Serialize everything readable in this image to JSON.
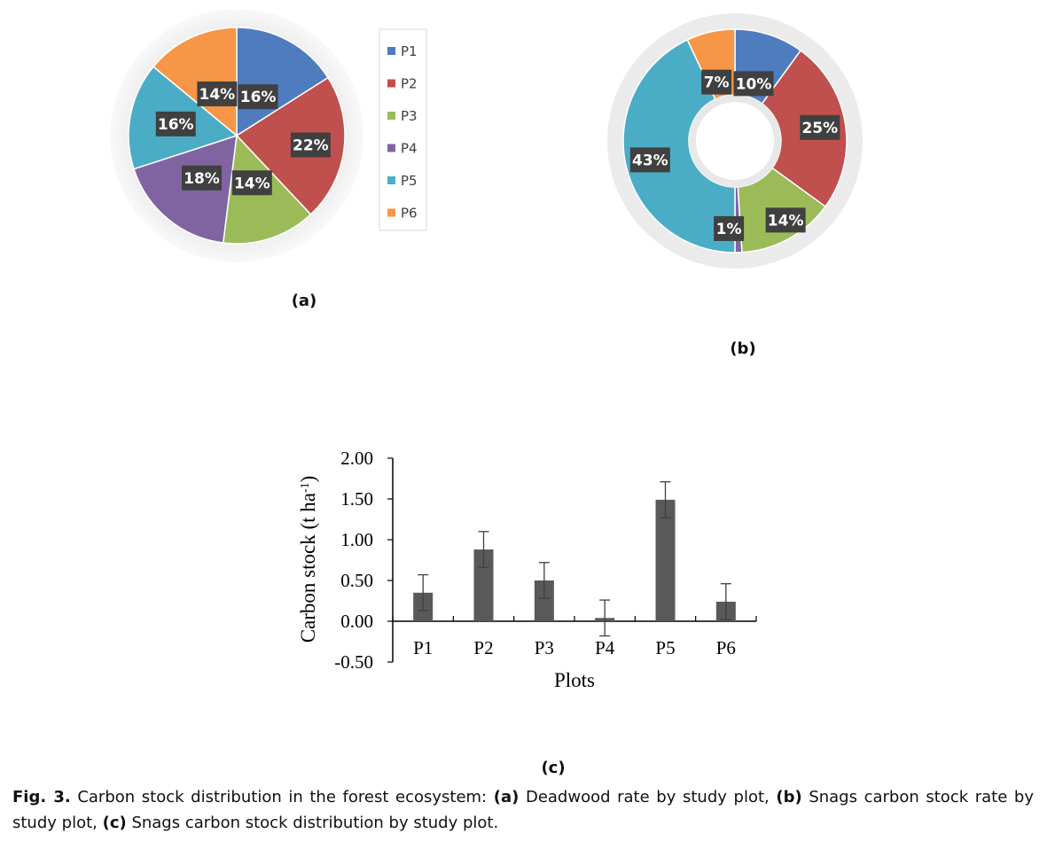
{
  "chart_data": [
    {
      "type": "pie",
      "panel_label": "(a)",
      "categories": [
        "P1",
        "P2",
        "P3",
        "P4",
        "P5",
        "P6"
      ],
      "values": [
        16,
        22,
        14,
        18,
        16,
        14
      ],
      "data_labels": [
        "16%",
        "22%",
        "14%",
        "18%",
        "16%",
        "14%"
      ],
      "legend": [
        "P1",
        "P2",
        "P3",
        "P4",
        "P5",
        "P6"
      ],
      "legend_position": "right",
      "colors": [
        "#4f7cbe",
        "#c0504d",
        "#9bbb59",
        "#8064a2",
        "#4bacc6",
        "#f79646"
      ]
    },
    {
      "type": "pie",
      "variant": "donut",
      "panel_label": "(b)",
      "categories": [
        "P1",
        "P2",
        "P3",
        "P4",
        "P5",
        "P6"
      ],
      "values": [
        10,
        25,
        14,
        1,
        43,
        7
      ],
      "data_labels": [
        "10%",
        "25%",
        "14%",
        "1%",
        "43%",
        "7%"
      ],
      "colors": [
        "#4f7cbe",
        "#c0504d",
        "#9bbb59",
        "#8064a2",
        "#4bacc6",
        "#f79646"
      ]
    },
    {
      "type": "bar",
      "panel_label": "(c)",
      "categories": [
        "P1",
        "P2",
        "P3",
        "P4",
        "P5",
        "P6"
      ],
      "values": [
        0.35,
        0.88,
        0.5,
        0.04,
        1.49,
        0.24
      ],
      "error": [
        0.22,
        0.22,
        0.22,
        0.22,
        0.22,
        0.22
      ],
      "xlabel": "Plots",
      "ylabel": "Carbon stock (t ha",
      "ylabel_sup": "-1",
      "ylabel_end": ")",
      "ylim": [
        -0.5,
        2.0
      ],
      "yticks": [
        "-0.50",
        "0.00",
        "0.50",
        "1.00",
        "1.50",
        "2.00"
      ],
      "ytick_values": [
        -0.5,
        0,
        0.5,
        1.0,
        1.5,
        2.0
      ],
      "bar_color": "#595959",
      "grid": false
    }
  ],
  "caption": {
    "fig": "Fig. 3.",
    "t1": " Carbon stock distribution in the forest ecosystem: ",
    "a": "(a)",
    "t2": " Deadwood rate by study plot, ",
    "b": "(b)",
    "t3": " Snags carbon stock rate by study plot, ",
    "c": "(c)",
    "t4": " Snags carbon stock distribution by study plot."
  }
}
